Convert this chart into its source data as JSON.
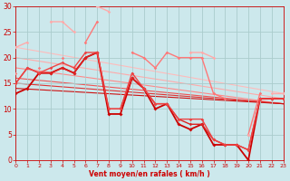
{
  "xlabel": "Vent moyen/en rafales ( km/h )",
  "background_color": "#cce8ec",
  "grid_color": "#aacccc",
  "ylim": [
    0,
    30
  ],
  "xlim": [
    0,
    23
  ],
  "yticks": [
    0,
    5,
    10,
    15,
    20,
    25,
    30
  ],
  "xticks": [
    0,
    1,
    2,
    3,
    4,
    5,
    6,
    7,
    8,
    9,
    10,
    11,
    12,
    13,
    14,
    15,
    16,
    17,
    18,
    19,
    20,
    21,
    22,
    23
  ],
  "series": [
    {
      "y": [
        13,
        14,
        17,
        17,
        18,
        17,
        20,
        21,
        9,
        9,
        16,
        14,
        10,
        11,
        7,
        6,
        7,
        3,
        3,
        3,
        0,
        12,
        12,
        12
      ],
      "color": "#cc0000",
      "lw": 1.3,
      "marker": "D",
      "ms": 2.0,
      "has_none": false
    },
    {
      "y": [
        15,
        18,
        17,
        17,
        18,
        17,
        20,
        21,
        10,
        10,
        16,
        14,
        11,
        11,
        8,
        7,
        7,
        4,
        3,
        3,
        2,
        12,
        12,
        12
      ],
      "color": "#dd2222",
      "lw": 1.0,
      "marker": "D",
      "ms": 1.8,
      "has_none": false
    },
    {
      "y": [
        15,
        18,
        17,
        18,
        19,
        18,
        21,
        21,
        10,
        10,
        17,
        14,
        11,
        11,
        8,
        8,
        8,
        4,
        3,
        3,
        2,
        12,
        12,
        12
      ],
      "color": "#ee4444",
      "lw": 1.0,
      "marker": "D",
      "ms": 1.8,
      "has_none": false
    },
    {
      "y": [
        17,
        null,
        18,
        null,
        20,
        null,
        23,
        27,
        null,
        null,
        21,
        20,
        18,
        21,
        20,
        20,
        20,
        13,
        12,
        null,
        5,
        13,
        null,
        13
      ],
      "color": "#ff7777",
      "lw": 1.0,
      "marker": "D",
      "ms": 1.8,
      "has_none": true
    },
    {
      "y": [
        22,
        23,
        null,
        27,
        27,
        25,
        null,
        30,
        29,
        null,
        null,
        null,
        null,
        null,
        null,
        21,
        21,
        20,
        null,
        null,
        5,
        null,
        13,
        13
      ],
      "color": "#ffaaaa",
      "lw": 1.0,
      "marker": "D",
      "ms": 1.8,
      "has_none": true
    }
  ],
  "trend_lines": [
    {
      "x0": 0,
      "y0": 22,
      "x1": 23,
      "y1": 13,
      "color": "#ffbbbb",
      "lw": 0.8
    },
    {
      "x0": 0,
      "y0": 20,
      "x1": 23,
      "y1": 12,
      "color": "#ffaaaa",
      "lw": 0.8
    },
    {
      "x0": 0,
      "y0": 18,
      "x1": 23,
      "y1": 11,
      "color": "#ff8888",
      "lw": 0.8
    },
    {
      "x0": 0,
      "y0": 16,
      "x1": 23,
      "y1": 11,
      "color": "#ee5555",
      "lw": 0.8
    },
    {
      "x0": 0,
      "y0": 15,
      "x1": 23,
      "y1": 11,
      "color": "#dd3333",
      "lw": 0.8
    },
    {
      "x0": 0,
      "y0": 14,
      "x1": 23,
      "y1": 11,
      "color": "#cc1111",
      "lw": 0.8
    }
  ]
}
